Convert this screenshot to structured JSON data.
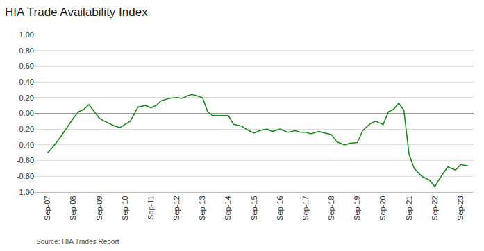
{
  "chart_data": {
    "type": "line",
    "title": "HIA Trade Availability Index",
    "annotation": "Source: HIA Trades Report",
    "color": "#1a8a1a",
    "x": [
      0.0,
      0.2,
      0.5,
      0.8,
      1.0,
      1.2,
      1.4,
      1.6,
      1.8,
      2.0,
      2.2,
      2.4,
      2.6,
      2.8,
      3.0,
      3.2,
      3.5,
      3.8,
      4.0,
      4.2,
      4.4,
      4.7,
      5.0,
      5.2,
      5.4,
      5.6,
      5.8,
      6.0,
      6.2,
      6.4,
      7.0,
      7.2,
      7.5,
      7.8,
      8.0,
      8.2,
      8.5,
      8.7,
      9.0,
      9.3,
      9.6,
      9.8,
      10.0,
      10.2,
      10.5,
      10.8,
      11.0,
      11.2,
      11.5,
      11.7,
      12.0,
      12.2,
      12.5,
      12.7,
      13.0,
      13.2,
      13.4,
      13.6,
      13.8,
      14.0,
      14.2,
      14.5,
      14.8,
      15.0,
      15.2,
      15.5,
      15.8,
      16.0,
      16.3
    ],
    "values": [
      -0.5,
      -0.43,
      -0.3,
      -0.15,
      -0.06,
      0.02,
      0.05,
      0.11,
      0.02,
      -0.06,
      -0.1,
      -0.13,
      -0.16,
      -0.18,
      -0.14,
      -0.1,
      0.08,
      0.1,
      0.07,
      0.1,
      0.16,
      0.19,
      0.2,
      0.19,
      0.22,
      0.24,
      0.22,
      0.2,
      0.02,
      -0.03,
      -0.03,
      -0.14,
      -0.16,
      -0.22,
      -0.25,
      -0.22,
      -0.2,
      -0.23,
      -0.2,
      -0.24,
      -0.22,
      -0.24,
      -0.24,
      -0.26,
      -0.23,
      -0.25,
      -0.27,
      -0.36,
      -0.4,
      -0.38,
      -0.37,
      -0.22,
      -0.13,
      -0.1,
      -0.14,
      0.02,
      0.05,
      0.13,
      0.04,
      -0.52,
      -0.7,
      -0.8,
      -0.85,
      -0.93,
      -0.82,
      -0.68,
      -0.72,
      -0.65,
      -0.67
    ],
    "xlim": [
      -0.5,
      16.5
    ],
    "xticks": [
      {
        "value": 0,
        "label": "Sep-07"
      },
      {
        "value": 1,
        "label": "Sep-08"
      },
      {
        "value": 2,
        "label": "Sep-09"
      },
      {
        "value": 3,
        "label": "Sep-10"
      },
      {
        "value": 4,
        "label": "Sep-11"
      },
      {
        "value": 5,
        "label": "Sep-12"
      },
      {
        "value": 6,
        "label": "Sep-13"
      },
      {
        "value": 7,
        "label": "Sep-14"
      },
      {
        "value": 8,
        "label": "Sep-15"
      },
      {
        "value": 9,
        "label": "Sep-16"
      },
      {
        "value": 10,
        "label": "Sep-17"
      },
      {
        "value": 11,
        "label": "Sep-18"
      },
      {
        "value": 12,
        "label": "Sep-19"
      },
      {
        "value": 13,
        "label": "Sep-20"
      },
      {
        "value": 14,
        "label": "Sep-21"
      },
      {
        "value": 15,
        "label": "Sep-22"
      },
      {
        "value": 16,
        "label": "Sep-23"
      }
    ],
    "ylim": [
      -1.0,
      1.0
    ],
    "yticks": [
      {
        "value": -1.0,
        "label": "-1.00"
      },
      {
        "value": -0.8,
        "label": "-0.80"
      },
      {
        "value": -0.6,
        "label": "-0.60"
      },
      {
        "value": -0.4,
        "label": "-0.40"
      },
      {
        "value": -0.2,
        "label": "-0.20"
      },
      {
        "value": 0.0,
        "label": "0.00"
      },
      {
        "value": 0.2,
        "label": "0.20"
      },
      {
        "value": 0.4,
        "label": "0.40"
      },
      {
        "value": 0.6,
        "label": "0.60"
      },
      {
        "value": 0.8,
        "label": "0.80"
      },
      {
        "value": 1.0,
        "label": "1.00"
      }
    ],
    "grid": "y"
  }
}
